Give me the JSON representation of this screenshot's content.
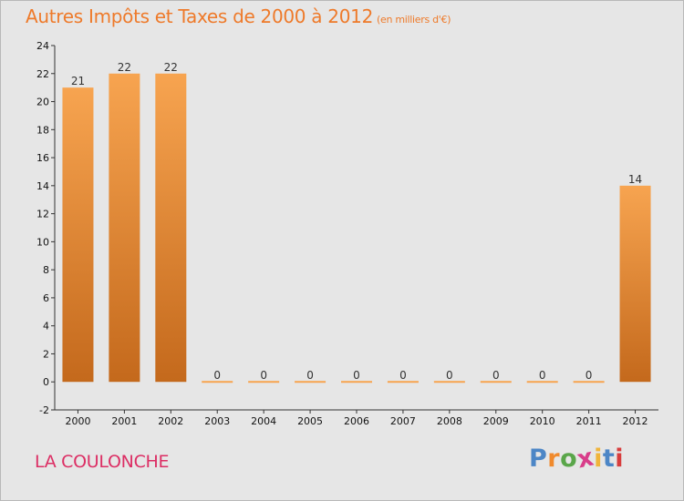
{
  "chart_data": {
    "type": "bar",
    "title": "Autres Impôts et Taxes de 2000 à 2012",
    "unit_label": "(en milliers d'€)",
    "categories": [
      "2000",
      "2001",
      "2002",
      "2003",
      "2004",
      "2005",
      "2006",
      "2007",
      "2008",
      "2009",
      "2010",
      "2011",
      "2012"
    ],
    "values": [
      21,
      22,
      22,
      0,
      0,
      0,
      0,
      0,
      0,
      0,
      0,
      0,
      14
    ],
    "value_labels": [
      "21",
      "22",
      "22",
      "0",
      "0",
      "0",
      "0",
      "0",
      "0",
      "0",
      "0",
      "0",
      "14"
    ],
    "xlabel": "",
    "ylabel": "",
    "ylim": [
      -2,
      24
    ],
    "yticks": [
      -2,
      0,
      2,
      4,
      6,
      8,
      10,
      12,
      14,
      16,
      18,
      20,
      22,
      24
    ],
    "ytick_labels": [
      "-2",
      "0",
      "2",
      "4",
      "6",
      "8",
      "10",
      "12",
      "14",
      "16",
      "18",
      "20",
      "22",
      "24"
    ],
    "grid": false,
    "colors": {
      "bar_top": "#f7a450",
      "bar_bottom": "#c4691c",
      "title": "#ee7a2a",
      "background": "#e6e6e6"
    }
  },
  "footer": {
    "commune": "LA COULONCHE",
    "logo": "Proxiti",
    "logo_colors": [
      "#4c86c6",
      "#f08a2d",
      "#5aa64a",
      "#d83d8a",
      "#f0b43a",
      "#4c86c6",
      "#d83d3d"
    ]
  }
}
